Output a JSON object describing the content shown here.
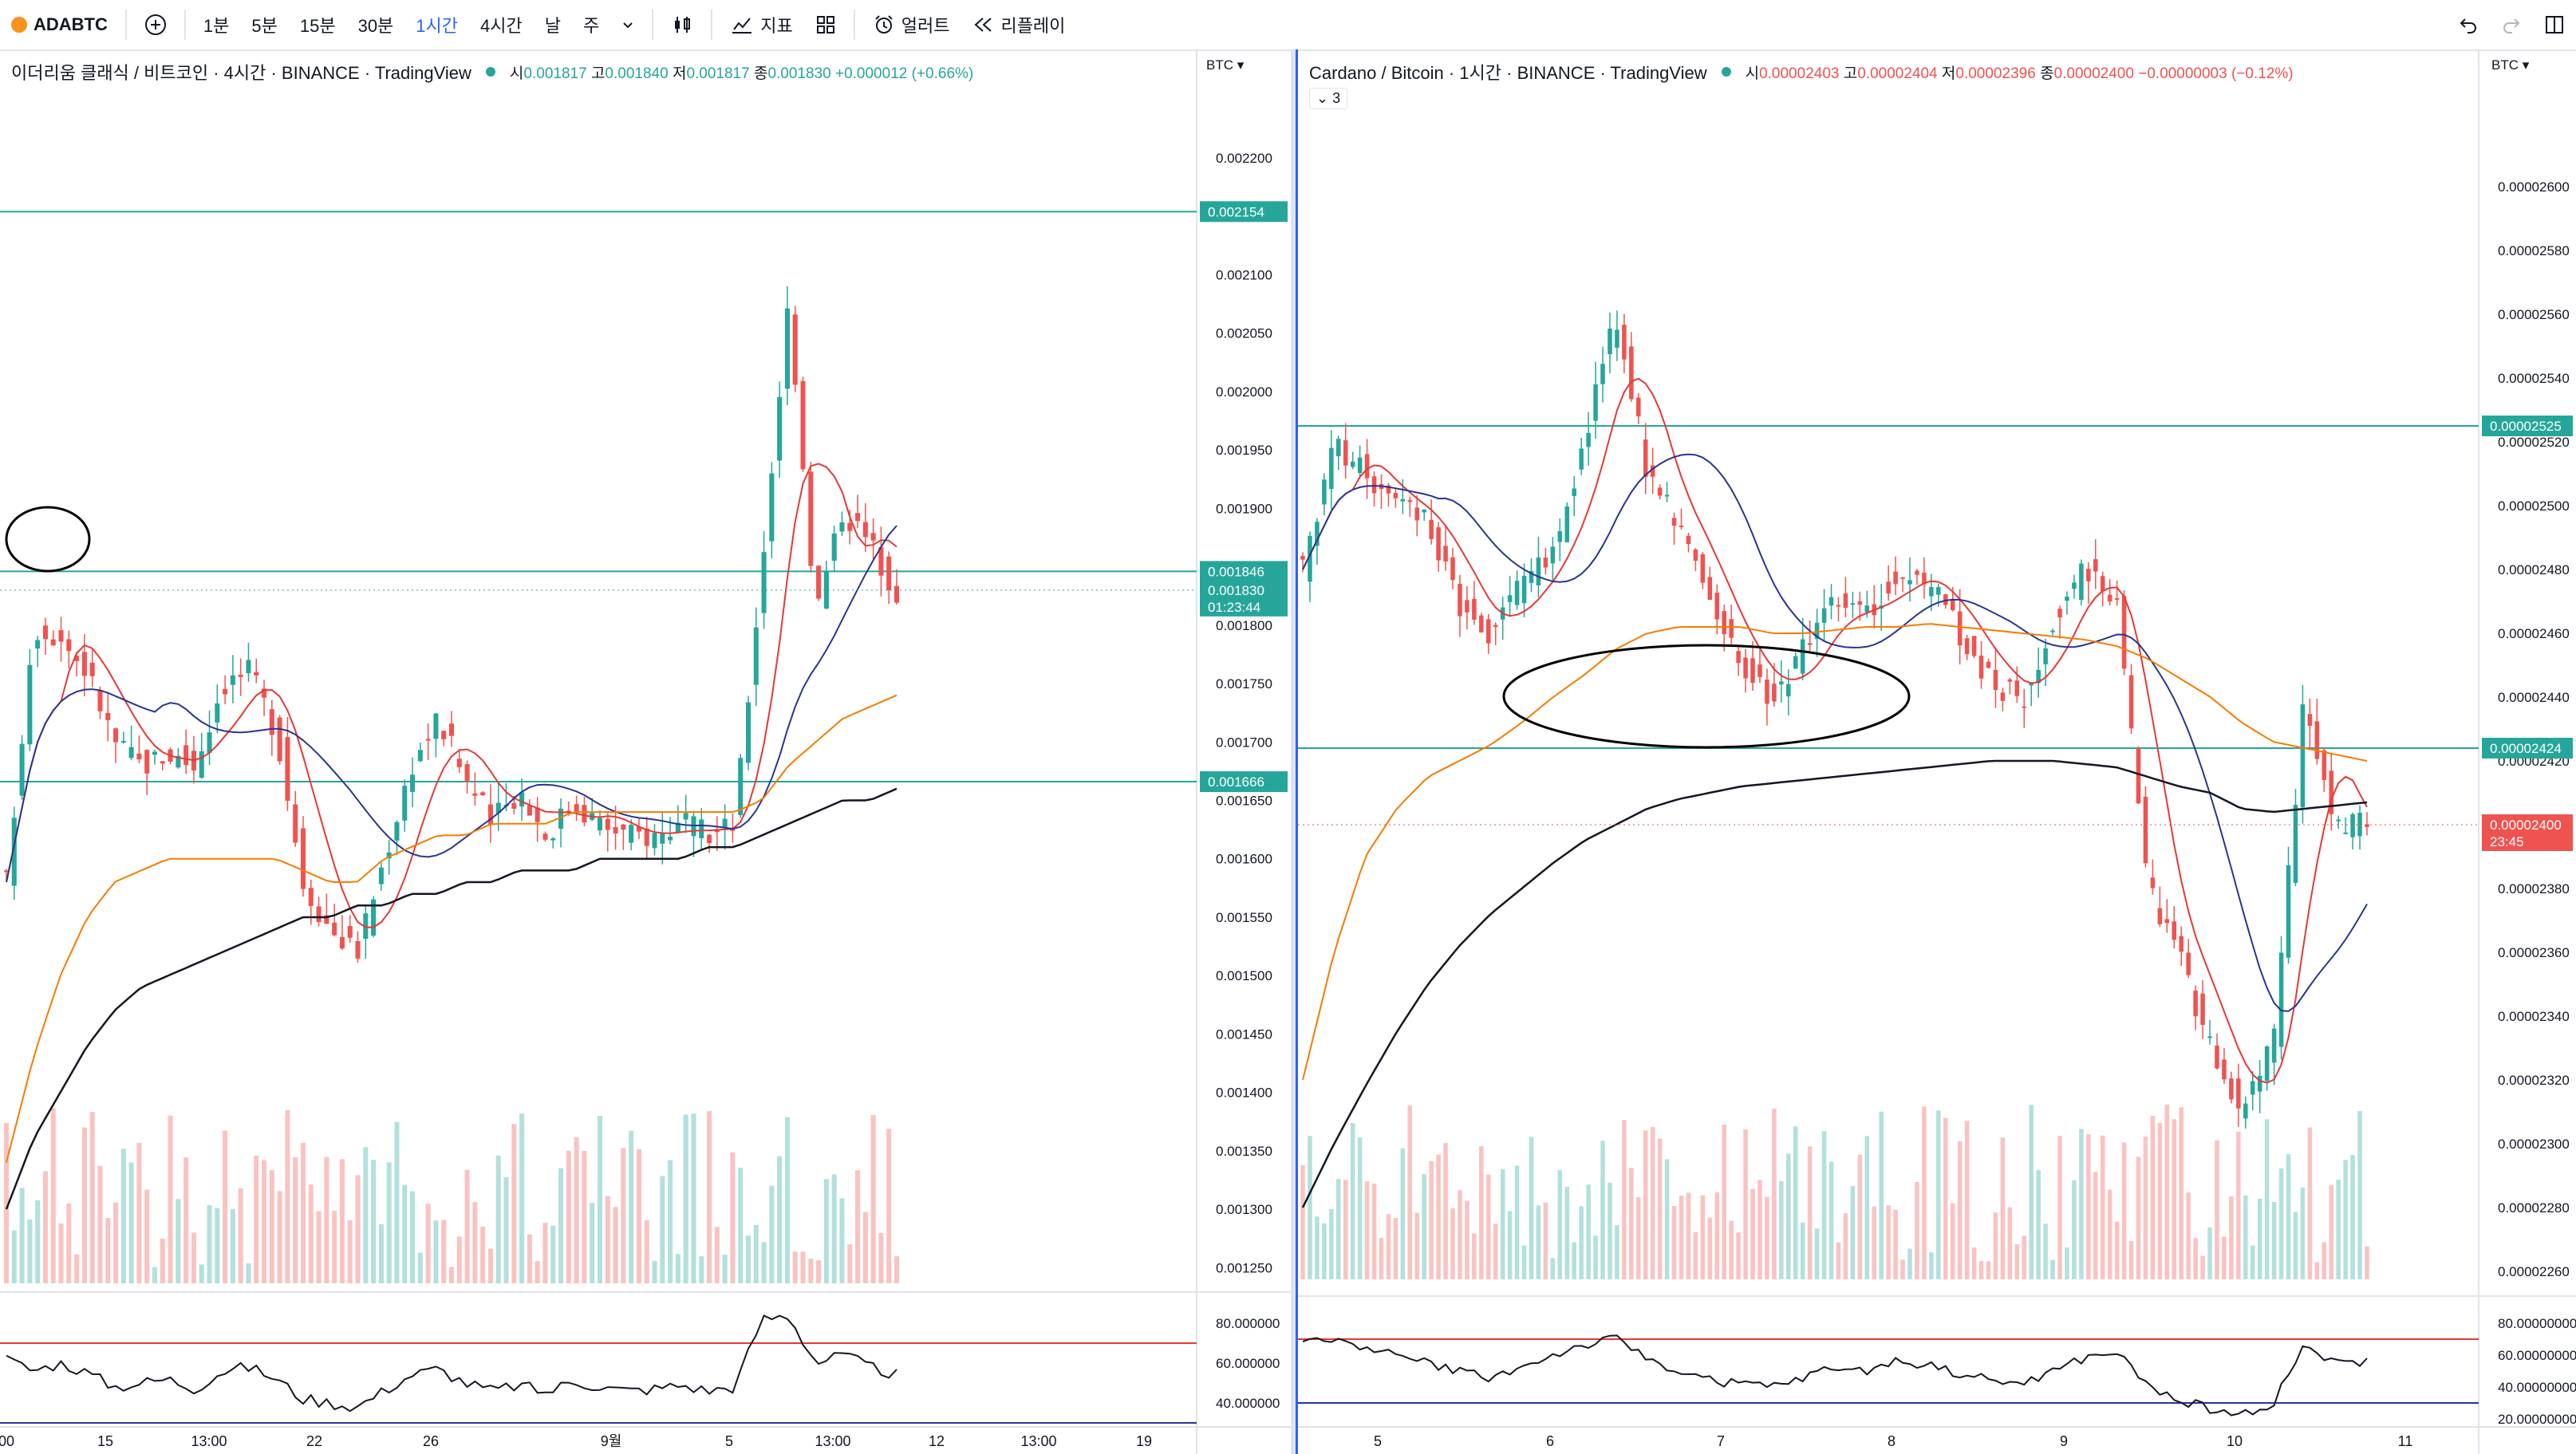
{
  "toolbar": {
    "symbol": "ADABTC",
    "intervals": [
      "1분",
      "5분",
      "15분",
      "30분",
      "1시간",
      "4시간",
      "날",
      "주"
    ],
    "active_interval": "1시간",
    "indicators_label": "지표",
    "alert_label": "얼러트",
    "replay_label": "리플레이"
  },
  "colors": {
    "up": "#26a69a",
    "down": "#ef5350",
    "ma_fast": "#e53935",
    "ma_mid": "#283593",
    "ma_slow": "#f57c00",
    "ma_long": "#131722",
    "level": "#26a69a",
    "rsi_upper": "#e53935",
    "rsi_lower": "#283593"
  },
  "left": {
    "title": "이더리움 클래식 / 비트코인 · 4시간 · BINANCE · TradingView",
    "ohlc": {
      "o_label": "시",
      "o": "0.001817",
      "h_label": "고",
      "h": "0.001840",
      "l_label": "저",
      "l": "0.001817",
      "c_label": "종",
      "c": "0.001830",
      "chg": "+0.000012 (+0.66%)"
    },
    "currency": "BTC",
    "price_ticks": [
      "0.002200",
      "0.002150",
      "0.002100",
      "0.002050",
      "0.002000",
      "0.001950",
      "0.001900",
      "0.001850",
      "0.001800",
      "0.001750",
      "0.001700",
      "0.001650",
      "0.001600",
      "0.001550",
      "0.001500",
      "0.001450",
      "0.001400",
      "0.001350",
      "0.001300",
      "0.001250"
    ],
    "rsi_ticks": [
      "80.000000",
      "60.000000",
      "40.000000"
    ],
    "time_labels": [
      "00",
      "15",
      "13:00",
      "22",
      "26",
      "9월",
      "5",
      "13:00",
      "12",
      "13:00",
      "19"
    ],
    "level_labels": {
      "top": "0.002154",
      "mid": "0.001846",
      "low": "0.001666"
    },
    "last_price": "0.001830",
    "countdown": "01:23:44"
  },
  "right": {
    "title": "Cardano / Bitcoin · 1시간 · BINANCE · TradingView",
    "ohlc": {
      "o_label": "시",
      "o": "0.00002403",
      "h_label": "고",
      "h": "0.00002404",
      "l_label": "저",
      "l": "0.00002396",
      "c_label": "종",
      "c": "0.00002400",
      "chg": "−0.00000003 (−0.12%)"
    },
    "badge": "3",
    "currency": "BTC",
    "price_ticks": [
      "0.00002600",
      "0.00002580",
      "0.00002560",
      "0.00002540",
      "0.00002520",
      "0.00002500",
      "0.00002480",
      "0.00002460",
      "0.00002440",
      "0.00002420",
      "0.00002400",
      "0.00002380",
      "0.00002360",
      "0.00002340",
      "0.00002320",
      "0.00002300",
      "0.00002280",
      "0.00002260"
    ],
    "rsi_ticks": [
      "80.00000000",
      "60.00000000",
      "40.00000000",
      "20.00000000"
    ],
    "time_labels": [
      "5",
      "6",
      "7",
      "8",
      "9",
      "10",
      "11"
    ],
    "level_labels": {
      "top": "0.00002525",
      "low": "0.00002424"
    },
    "last_price": "0.00002400",
    "countdown": "23:45"
  },
  "chart_data": [
    {
      "type": "candlestick",
      "title": "이더리움 클래식 / 비트코인 · 4시간 · BINANCE · TradingView",
      "ylim": [
        0.00124,
        0.00223
      ],
      "x_ticks": [
        "15",
        "13:00",
        "22",
        "26",
        "9월",
        "5",
        "13:00",
        "12",
        "13:00",
        "19"
      ],
      "horizontal_levels": [
        0.002154,
        0.001846,
        0.001666
      ],
      "close_path": [
        0.00158,
        0.0018,
        0.00179,
        0.00176,
        0.0017,
        0.00168,
        0.00169,
        0.00168,
        0.00175,
        0.00176,
        0.00171,
        0.00158,
        0.00154,
        0.00152,
        0.0016,
        0.00168,
        0.00172,
        0.00167,
        0.00163,
        0.00166,
        0.00162,
        0.00165,
        0.00163,
        0.00162,
        0.00162,
        0.00163,
        0.00162,
        0.00163,
        0.00185,
        0.00208,
        0.00181,
        0.0019,
        0.00187,
        0.00183
      ],
      "ma_slow": [
        0.00134,
        0.00143,
        0.0015,
        0.00155,
        0.00158,
        0.00159,
        0.0016,
        0.0016,
        0.0016,
        0.0016,
        0.0016,
        0.00159,
        0.00158,
        0.00158,
        0.0016,
        0.00161,
        0.00162,
        0.00162,
        0.00163,
        0.00163,
        0.00163,
        0.00164,
        0.00164,
        0.00164,
        0.00164,
        0.00164,
        0.00164,
        0.00164,
        0.00165,
        0.00168,
        0.0017,
        0.00172,
        0.00173,
        0.00174
      ],
      "ma_long": [
        0.0013,
        0.00136,
        0.0014,
        0.00144,
        0.00147,
        0.00149,
        0.0015,
        0.00151,
        0.00152,
        0.00153,
        0.00154,
        0.00155,
        0.00155,
        0.00156,
        0.00156,
        0.00157,
        0.00157,
        0.00158,
        0.00158,
        0.00159,
        0.00159,
        0.00159,
        0.0016,
        0.0016,
        0.0016,
        0.0016,
        0.00161,
        0.00161,
        0.00162,
        0.00163,
        0.00164,
        0.00165,
        0.00165,
        0.00166
      ],
      "rsi_ylim": [
        30,
        90
      ],
      "rsi_levels": [
        70,
        30
      ],
      "rsi": [
        62,
        56,
        60,
        55,
        48,
        50,
        52,
        47,
        56,
        58,
        52,
        42,
        40,
        38,
        46,
        54,
        57,
        50,
        46,
        49,
        45,
        51,
        48,
        46,
        47,
        49,
        46,
        48,
        82,
        84,
        60,
        64,
        58,
        54
      ]
    },
    {
      "type": "candlestick",
      "title": "Cardano / Bitcoin · 1시간 · BINANCE · TradingView",
      "ylim": [
        2.25e-05,
        2.62e-05
      ],
      "x_ticks": [
        "5",
        "6",
        "7",
        "8",
        "9",
        "10",
        "11"
      ],
      "horizontal_levels": [
        2.525e-05,
        2.424e-05
      ],
      "close_path": [
        2.48e-05,
        2.52e-05,
        2.51e-05,
        2.5e-05,
        2.495e-05,
        2.47e-05,
        2.46e-05,
        2.475e-05,
        2.485e-05,
        2.52e-05,
        2.56e-05,
        2.51e-05,
        2.495e-05,
        2.47e-05,
        2.45e-05,
        2.44e-05,
        2.455e-05,
        2.47e-05,
        2.465e-05,
        2.48e-05,
        2.475e-05,
        2.46e-05,
        2.445e-05,
        2.44e-05,
        2.465e-05,
        2.48e-05,
        2.47e-05,
        2.38e-05,
        2.36e-05,
        2.33e-05,
        2.31e-05,
        2.33e-05,
        2.44e-05,
        2.4e-05,
        2.4e-05
      ],
      "ma_slow": [
        2.32e-05,
        2.36e-05,
        2.39e-05,
        2.405e-05,
        2.415e-05,
        2.42e-05,
        2.425e-05,
        2.432e-05,
        2.44e-05,
        2.447e-05,
        2.455e-05,
        2.46e-05,
        2.462e-05,
        2.462e-05,
        2.462e-05,
        2.46e-05,
        2.46e-05,
        2.461e-05,
        2.462e-05,
        2.462e-05,
        2.463e-05,
        2.462e-05,
        2.461e-05,
        2.46e-05,
        2.459e-05,
        2.458e-05,
        2.456e-05,
        2.452e-05,
        2.446e-05,
        2.44e-05,
        2.432e-05,
        2.426e-05,
        2.424e-05,
        2.422e-05,
        2.42e-05
      ],
      "ma_long": [
        2.28e-05,
        2.3e-05,
        2.318e-05,
        2.335e-05,
        2.35e-05,
        2.362e-05,
        2.372e-05,
        2.38e-05,
        2.388e-05,
        2.395e-05,
        2.4e-05,
        2.405e-05,
        2.408e-05,
        2.41e-05,
        2.412e-05,
        2.413e-05,
        2.414e-05,
        2.415e-05,
        2.416e-05,
        2.417e-05,
        2.418e-05,
        2.419e-05,
        2.42e-05,
        2.42e-05,
        2.42e-05,
        2.419e-05,
        2.418e-05,
        2.415e-05,
        2.412e-05,
        2.41e-05,
        2.405e-05,
        2.404e-05,
        2.405e-05,
        2.406e-05,
        2.407e-05
      ],
      "rsi_ylim": [
        15,
        90
      ],
      "rsi_levels": [
        70,
        30
      ],
      "rsi": [
        70,
        68,
        66,
        60,
        55,
        50,
        46,
        52,
        60,
        66,
        70,
        58,
        50,
        44,
        42,
        40,
        46,
        52,
        50,
        56,
        54,
        48,
        44,
        42,
        50,
        58,
        62,
        40,
        32,
        26,
        22,
        30,
        66,
        54,
        56
      ]
    }
  ]
}
